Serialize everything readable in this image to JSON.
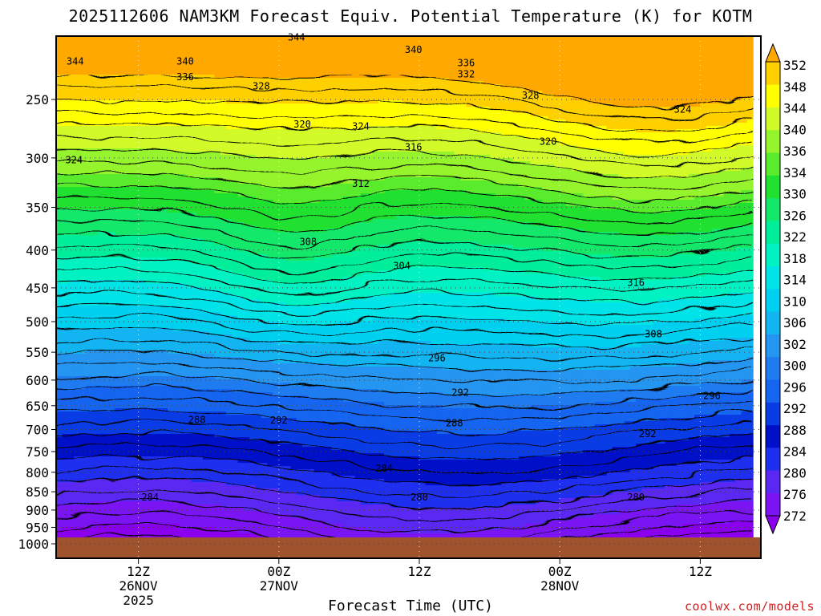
{
  "title": "2025112606 NAM3KM Forecast Equiv. Potential Temperature (K) for KOTM",
  "credit": "coolwx.com/models",
  "chart_data": {
    "type": "heatmap",
    "title": "2025112606 NAM3KM Forecast Equiv. Potential Temperature (K) for KOTM",
    "xlabel": "Forecast Time (UTC)",
    "ylabel": "",
    "y_scale": "log-pressure (inverted)",
    "ylim": [
      1000,
      200
    ],
    "y_ticks": [
      250,
      300,
      350,
      400,
      450,
      500,
      550,
      600,
      650,
      700,
      750,
      800,
      850,
      900,
      950,
      1000
    ],
    "y_tick_labels": [
      "250",
      "300",
      "350",
      "400",
      "450",
      "500",
      "550",
      "600",
      "650",
      "700",
      "750",
      "800",
      "850",
      "900",
      "950",
      "1000"
    ],
    "xlim": [
      "2025-11-26 06Z",
      "2025-11-28 18Z"
    ],
    "x_ticks": [
      {
        "hour": 6,
        "lines": [
          "12Z",
          "26NOV",
          "2025"
        ]
      },
      {
        "hour": 18,
        "lines": [
          "00Z",
          "27NOV"
        ]
      },
      {
        "hour": 30,
        "lines": [
          "12Z"
        ]
      },
      {
        "hour": 42,
        "lines": [
          "00Z",
          "28NOV"
        ]
      },
      {
        "hour": 54,
        "lines": [
          "12Z"
        ]
      }
    ],
    "grid": true,
    "colorbar": {
      "levels": [
        272,
        276,
        280,
        284,
        288,
        292,
        296,
        300,
        302,
        306,
        310,
        314,
        318,
        322,
        326,
        330,
        334,
        336,
        340,
        344,
        348,
        352
      ],
      "labels": [
        "352",
        "348",
        "344",
        "340",
        "336",
        "334",
        "330",
        "326",
        "322",
        "318",
        "314",
        "310",
        "306",
        "302",
        "300",
        "296",
        "292",
        "288",
        "284",
        "280",
        "276",
        "272"
      ],
      "colors": [
        "#8a00ee",
        "#7a14f2",
        "#5a28f2",
        "#1f2ff0",
        "#0010c8",
        "#0a3ce6",
        "#1565f0",
        "#1e7cf0",
        "#2495f0",
        "#13b4f2",
        "#00d0f0",
        "#00e4e8",
        "#00f2c2",
        "#00ee9a",
        "#14e86a",
        "#20e030",
        "#5aec2c",
        "#96f42c",
        "#d2fa28",
        "#ffff00",
        "#ffd000",
        "#ffa800"
      ]
    },
    "contour_labels": [
      {
        "value": "344",
        "hour": 0.6,
        "p": 222
      },
      {
        "value": "344",
        "hour": 19.5,
        "p": 206
      },
      {
        "value": "340",
        "hour": 10.0,
        "p": 222
      },
      {
        "value": "336",
        "hour": 10.0,
        "p": 233
      },
      {
        "value": "328",
        "hour": 16.5,
        "p": 240
      },
      {
        "value": "340",
        "hour": 29.5,
        "p": 214
      },
      {
        "value": "336",
        "hour": 34.0,
        "p": 223
      },
      {
        "value": "332",
        "hour": 34.0,
        "p": 231
      },
      {
        "value": "328",
        "hour": 39.5,
        "p": 247
      },
      {
        "value": "324",
        "hour": 52.5,
        "p": 258
      },
      {
        "value": "320",
        "hour": 20.0,
        "p": 270
      },
      {
        "value": "324",
        "hour": 25.0,
        "p": 272
      },
      {
        "value": "316",
        "hour": 29.5,
        "p": 290
      },
      {
        "value": "320",
        "hour": 41.0,
        "p": 285
      },
      {
        "value": "324",
        "hour": 0.5,
        "p": 302
      },
      {
        "value": "312",
        "hour": 25.0,
        "p": 325
      },
      {
        "value": "308",
        "hour": 20.5,
        "p": 390
      },
      {
        "value": "304",
        "hour": 28.5,
        "p": 420
      },
      {
        "value": "316",
        "hour": 48.5,
        "p": 443
      },
      {
        "value": "308",
        "hour": 50.0,
        "p": 520
      },
      {
        "value": "296",
        "hour": 31.5,
        "p": 560
      },
      {
        "value": "292",
        "hour": 33.5,
        "p": 624
      },
      {
        "value": "296",
        "hour": 55.0,
        "p": 630
      },
      {
        "value": "288",
        "hour": 11.0,
        "p": 679
      },
      {
        "value": "292",
        "hour": 18.0,
        "p": 680
      },
      {
        "value": "288",
        "hour": 33.0,
        "p": 686
      },
      {
        "value": "292",
        "hour": 49.5,
        "p": 710
      },
      {
        "value": "284",
        "hour": 27.0,
        "p": 790
      },
      {
        "value": "284",
        "hour": 7.0,
        "p": 865
      },
      {
        "value": "280",
        "hour": 30.0,
        "p": 865
      },
      {
        "value": "280",
        "hour": 48.5,
        "p": 865
      }
    ]
  }
}
